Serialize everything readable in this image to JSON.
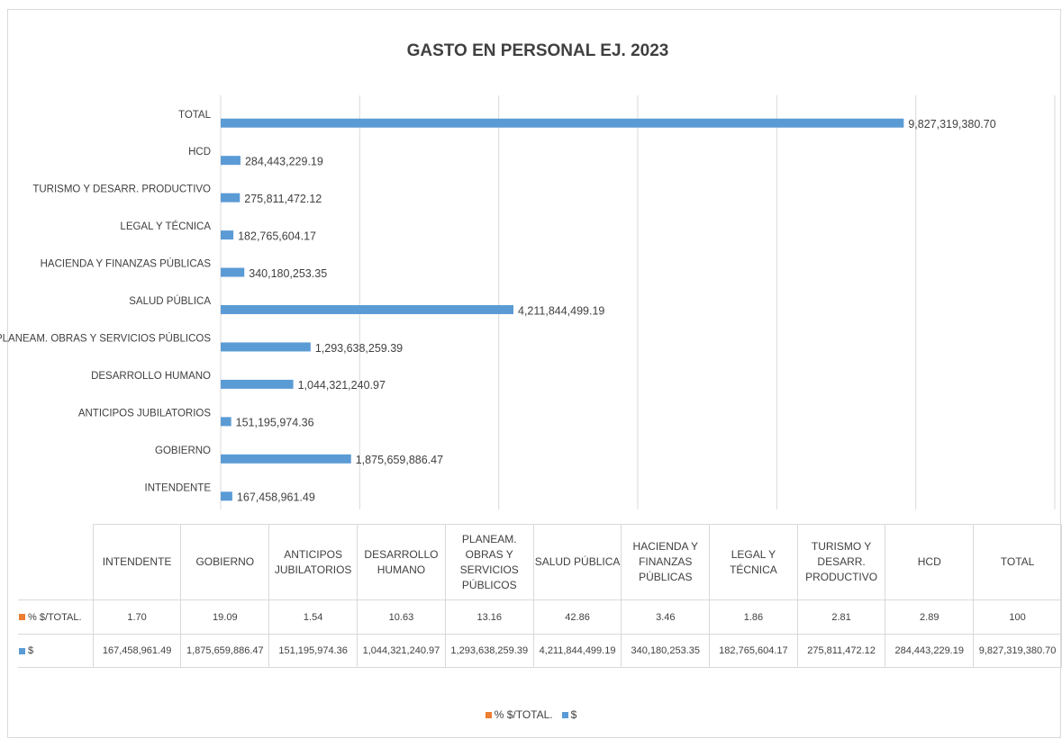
{
  "chart_data": {
    "type": "bar",
    "orientation": "horizontal",
    "title": "GASTO EN PERSONAL EJ. 2023",
    "categories": [
      "INTENDENTE",
      "GOBIERNO",
      "ANTICIPOS JUBILATORIOS",
      "DESARROLLO HUMANO",
      "PLANEAM. OBRAS Y SERVICIOS PÚBLICOS",
      "SALUD PÚBLICA",
      "HACIENDA Y FINANZAS PÚBLICAS",
      "LEGAL Y TÉCNICA",
      "TURISMO Y DESARR. PRODUCTIVO",
      "HCD",
      "TOTAL"
    ],
    "series": [
      {
        "name": "% $/TOTAL.",
        "color": "#ed7d31",
        "values": [
          1.7,
          19.09,
          1.54,
          10.63,
          13.16,
          42.86,
          3.46,
          1.86,
          2.81,
          2.89,
          100
        ],
        "value_labels": [
          "1.70",
          "19.09",
          "1.54",
          "10.63",
          "13.16",
          "42.86",
          "3.46",
          "1.86",
          "2.81",
          "2.89",
          "100"
        ]
      },
      {
        "name": "$",
        "color": "#5b9bd5",
        "values": [
          167458961.49,
          1875659886.47,
          151195974.36,
          1044321240.97,
          1293638259.39,
          4211844499.19,
          340180253.35,
          182765604.17,
          275811472.12,
          284443229.19,
          9827319380.7
        ],
        "value_labels": [
          "167,458,961.49",
          "1,875,659,886.47",
          "151,195,974.36",
          "1,044,321,240.97",
          "1,293,638,259.39",
          "4,211,844,499.19",
          "340,180,253.35",
          "182,765,604.17",
          "275,811,472.12",
          "284,443,229.19",
          "9,827,319,380.70"
        ]
      }
    ],
    "xlim": [
      0,
      12000000000
    ],
    "xticks": [
      0,
      2000000000,
      4000000000,
      6000000000,
      8000000000,
      10000000000,
      12000000000
    ],
    "grid": true,
    "data_table": true,
    "legend": "bottom"
  }
}
